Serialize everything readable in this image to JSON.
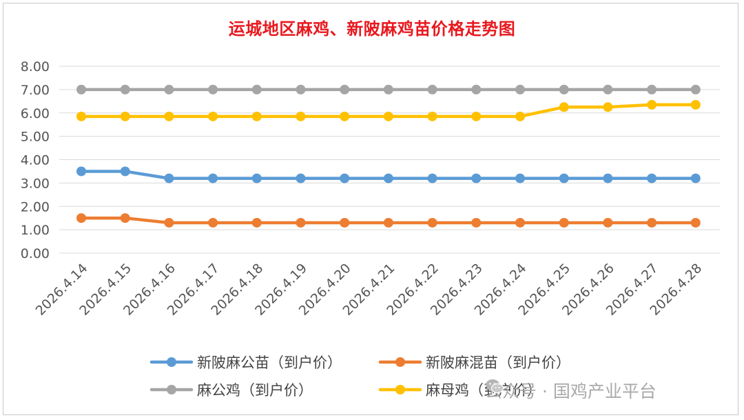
{
  "chart_data": {
    "type": "line",
    "title": "运城地区麻鸡、新陂麻鸡苗价格走势图",
    "categories": [
      "2026.4.14",
      "2026.4.15",
      "2026.4.16",
      "2026.4.17",
      "2026.4.18",
      "2026.4.19",
      "2026.4.20",
      "2026.4.21",
      "2026.4.22",
      "2026.4.23",
      "2026.4.24",
      "2026.4.25",
      "2026.4.26",
      "2026.4.27",
      "2026.4.28"
    ],
    "y_ticks": [
      "0.00",
      "1.00",
      "2.00",
      "3.00",
      "4.00",
      "5.00",
      "6.00",
      "7.00",
      "8.00"
    ],
    "ylim": [
      0,
      8
    ],
    "grid": true,
    "legend_position": "bottom",
    "series": [
      {
        "name": "新陂麻公苗（到户价）",
        "color": "#5b9bd5",
        "values": [
          3.5,
          3.5,
          3.2,
          3.2,
          3.2,
          3.2,
          3.2,
          3.2,
          3.2,
          3.2,
          3.2,
          3.2,
          3.2,
          3.2,
          3.2
        ]
      },
      {
        "name": "新陂麻混苗（到户价）",
        "color": "#ed7d31",
        "values": [
          1.5,
          1.5,
          1.3,
          1.3,
          1.3,
          1.3,
          1.3,
          1.3,
          1.3,
          1.3,
          1.3,
          1.3,
          1.3,
          1.3,
          1.3
        ]
      },
      {
        "name": "麻公鸡（到户价）",
        "color": "#a5a5a5",
        "values": [
          7.0,
          7.0,
          7.0,
          7.0,
          7.0,
          7.0,
          7.0,
          7.0,
          7.0,
          7.0,
          7.0,
          7.0,
          7.0,
          7.0,
          7.0
        ]
      },
      {
        "name": "麻母鸡（到户价）",
        "color": "#ffc000",
        "values": [
          5.85,
          5.85,
          5.85,
          5.85,
          5.85,
          5.85,
          5.85,
          5.85,
          5.85,
          5.85,
          5.85,
          6.25,
          6.25,
          6.35,
          6.35
        ]
      }
    ]
  },
  "watermark": {
    "text": "公众号 · 国鸡产业平台",
    "icon": "wechat-icon"
  }
}
